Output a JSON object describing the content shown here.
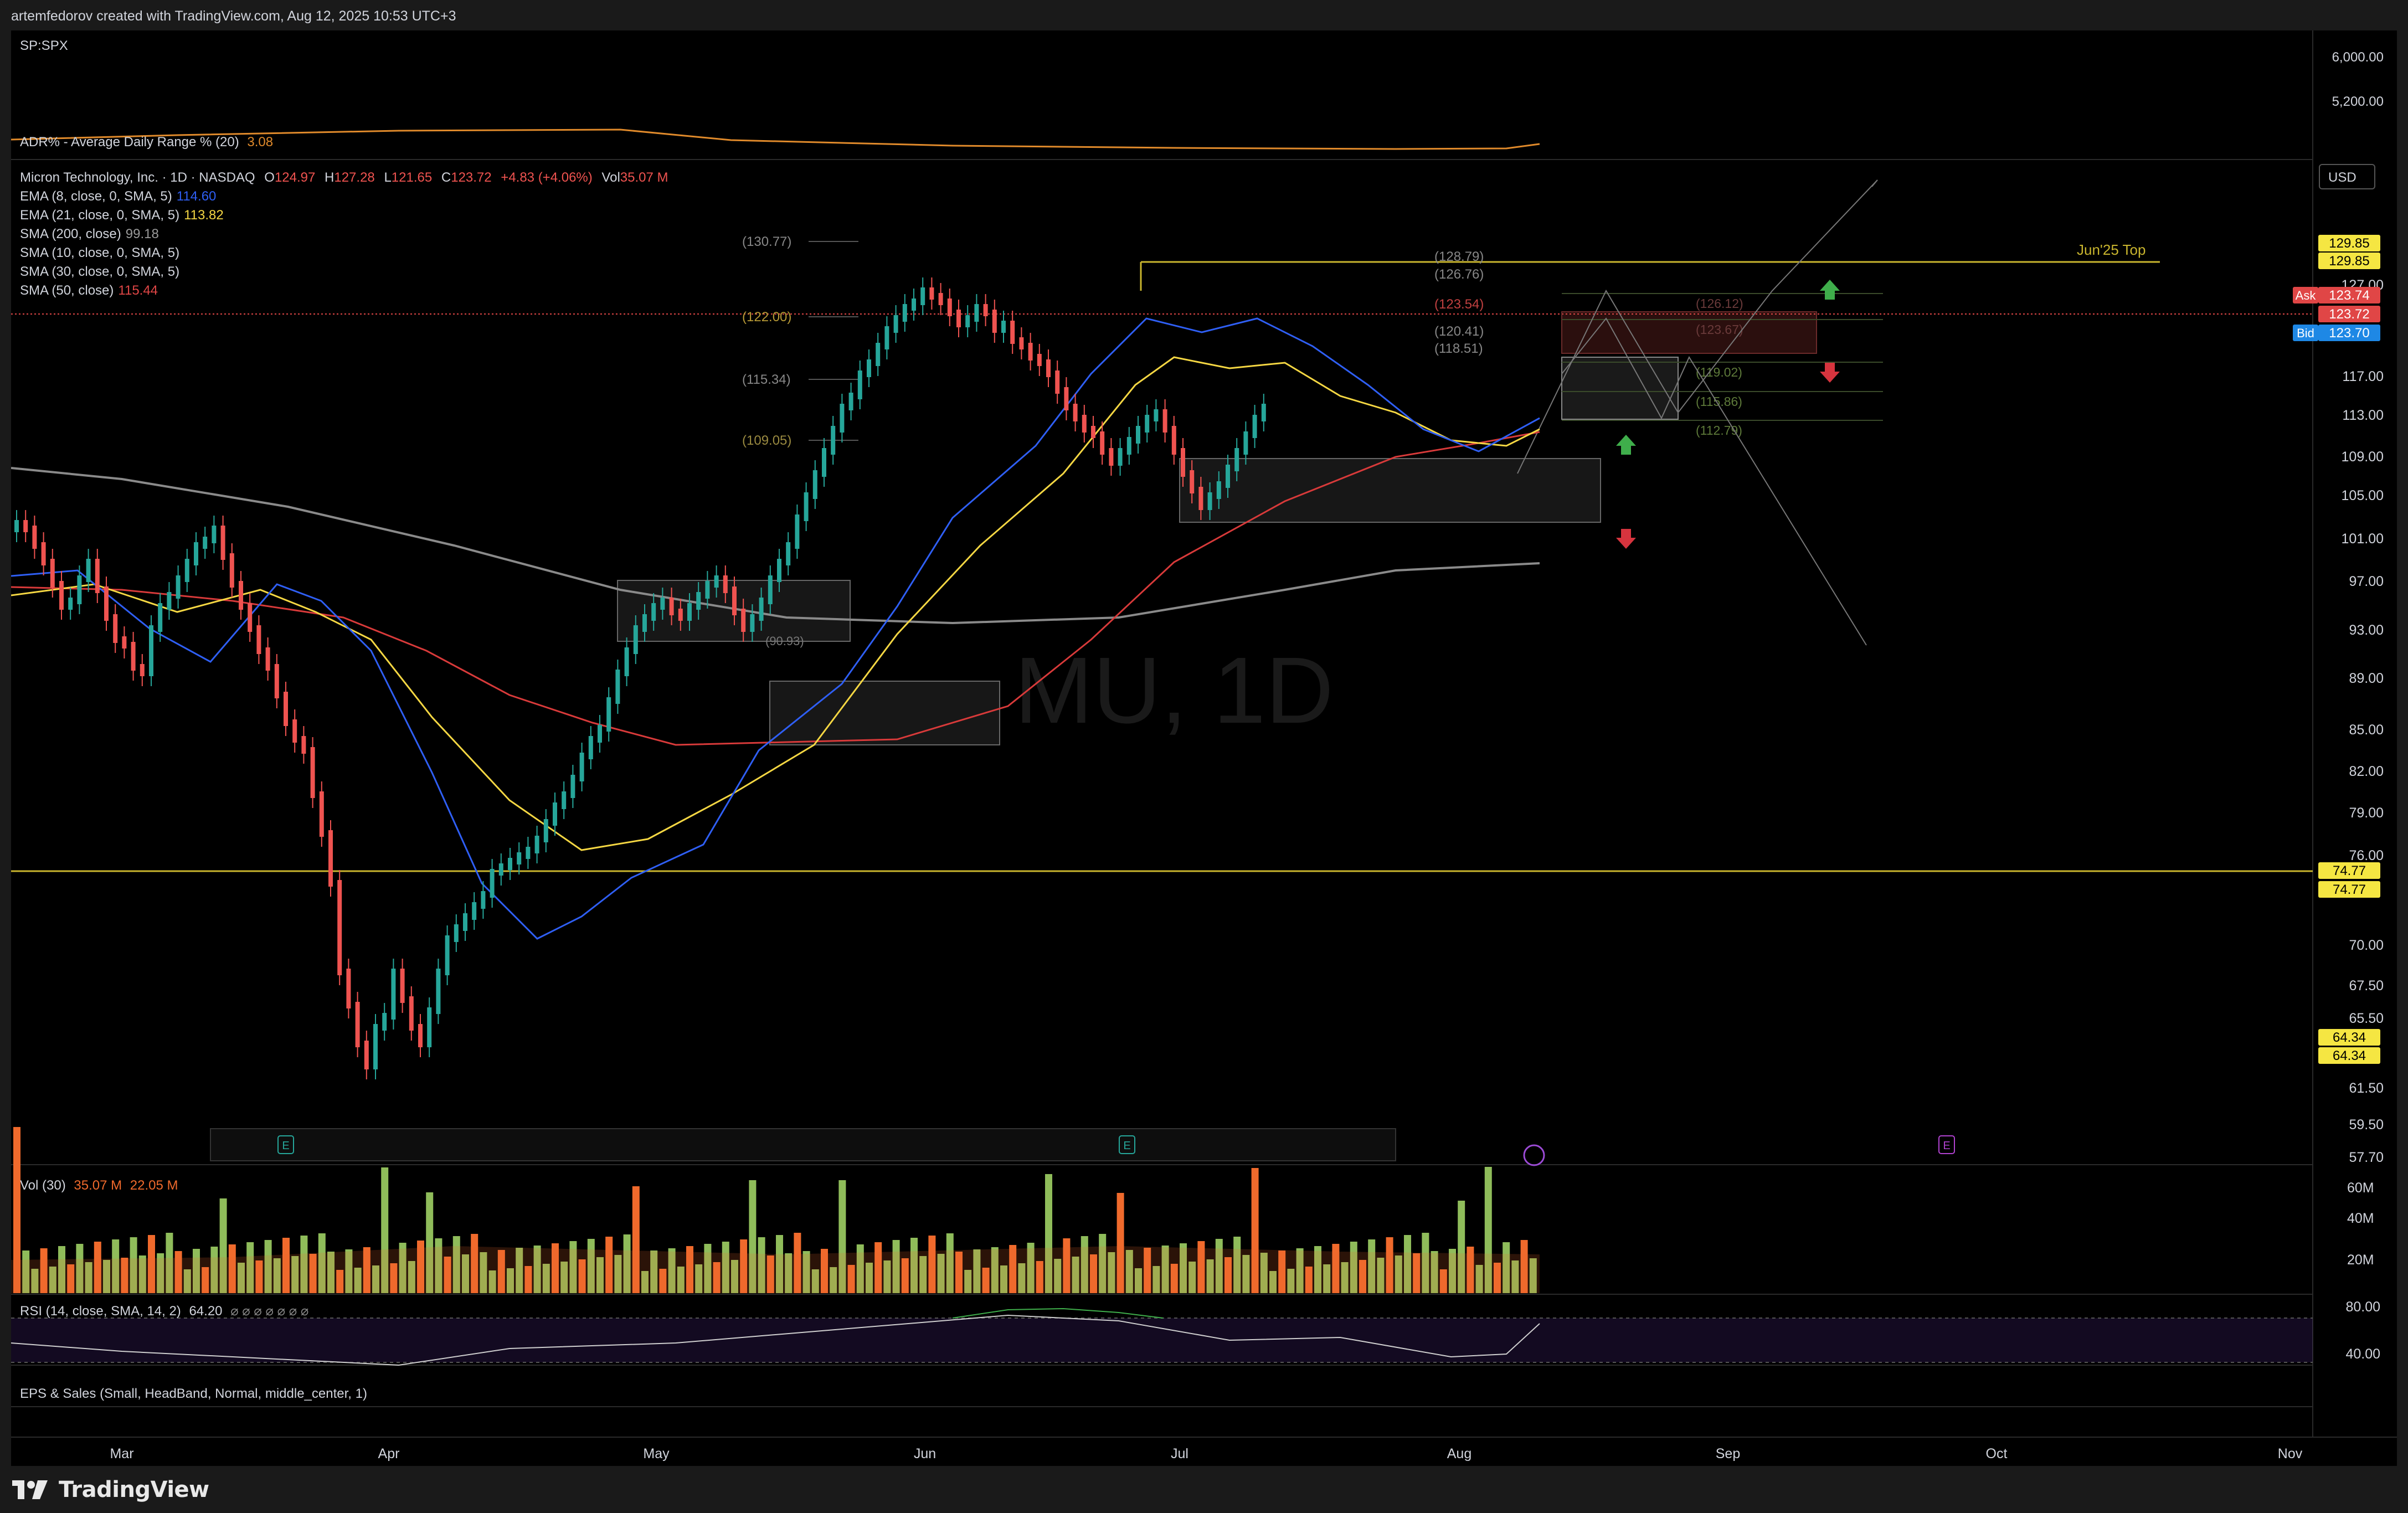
{
  "header": {
    "attribution": "artemfedorov created with TradingView.com, Aug 12, 2025 10:53 UTC+3"
  },
  "compare_pane": {
    "symbol": "SP:SPX",
    "price_labels": [
      "6,000.00",
      "5,200.00"
    ]
  },
  "adr_pane": {
    "legend": "ADR% - Average Daily Range % (20)",
    "value": "3.08",
    "color": "#e08a2b"
  },
  "main_pane": {
    "title": "Micron Technology, Inc. · 1D · NASDAQ",
    "ohlc": {
      "o_label": "O",
      "o": "124.97",
      "h_label": "H",
      "h": "127.28",
      "l_label": "L",
      "l": "121.65",
      "c_label": "C",
      "c": "123.72",
      "change": "+4.83 (+4.06%)",
      "vol_label": "Vol",
      "vol": "35.07 M"
    },
    "indicators": [
      {
        "name": "EMA (8, close, 0, SMA, 5)",
        "value": "114.60",
        "color": "#2f5ff5"
      },
      {
        "name": "EMA (21, close, 0, SMA, 5)",
        "value": "113.82",
        "color": "#f5d743"
      },
      {
        "name": "SMA (200, close)",
        "value": "99.18",
        "color": "#9a9a9a"
      },
      {
        "name": "SMA (10, close, 0, SMA, 5)",
        "value": "",
        "color": "#d1d4dc"
      },
      {
        "name": "SMA (30, close, 0, SMA, 5)",
        "value": "",
        "color": "#d1d4dc"
      },
      {
        "name": "SMA (50, close)",
        "value": "115.44",
        "color": "#e04646"
      }
    ],
    "watermark": "MU, 1D",
    "currency": "USD",
    "price_axis_labels": [
      "127.00",
      "117.00",
      "113.00",
      "109.00",
      "105.00",
      "101.00",
      "97.00",
      "93.00",
      "89.00",
      "85.00",
      "82.00",
      "79.00",
      "76.00",
      "70.00",
      "67.50",
      "65.50",
      "61.50",
      "59.50",
      "57.70"
    ],
    "axis_tags": {
      "high_1": "129.85",
      "high_2": "129.85",
      "ask_label": "Ask",
      "ask": "123.74",
      "last": "123.72",
      "bid_label": "Bid",
      "bid": "123.70",
      "support_1": "74.77",
      "support_2": "74.77",
      "low_1": "64.34",
      "low_2": "64.34"
    },
    "annotation_top": "Jun'25 Top",
    "fib_left": [
      "(130.77)",
      "(122.00)",
      "(115.34)",
      "(109.05)"
    ],
    "fib_right": [
      "(128.79)",
      "(126.76)",
      "(123.54)",
      "(120.41)",
      "(118.51)"
    ],
    "projection_labels": [
      "(126.12)",
      "(123.67)",
      "(119.02)",
      "(115.86)",
      "(112.79)"
    ],
    "box_label": "(90.93)",
    "earnings_marker": "E"
  },
  "volume_pane": {
    "legend": "Vol (30)",
    "value1": "35.07 M",
    "value2": "22.05 M",
    "axis_labels": [
      "60M",
      "40M",
      "20M"
    ]
  },
  "rsi_pane": {
    "legend": "RSI (14, close, SMA, 14, 2)",
    "value": "64.20",
    "extra": "⌀ ⌀ ⌀ ⌀ ⌀ ⌀ ⌀",
    "axis_labels": [
      "80.00",
      "40.00"
    ]
  },
  "eps_pane": {
    "legend": "EPS & Sales (Small, HeadBand, Normal, middle_center, 1)"
  },
  "time_axis": [
    "Mar",
    "Apr",
    "May",
    "Jun",
    "Jul",
    "Aug",
    "Sep",
    "Oct",
    "Nov"
  ],
  "brand": {
    "name": "TradingView"
  },
  "colors": {
    "up": "#26a69a",
    "down": "#ef5350",
    "vol_up": "#8fbc5a",
    "vol_down": "#f06a2c"
  }
}
